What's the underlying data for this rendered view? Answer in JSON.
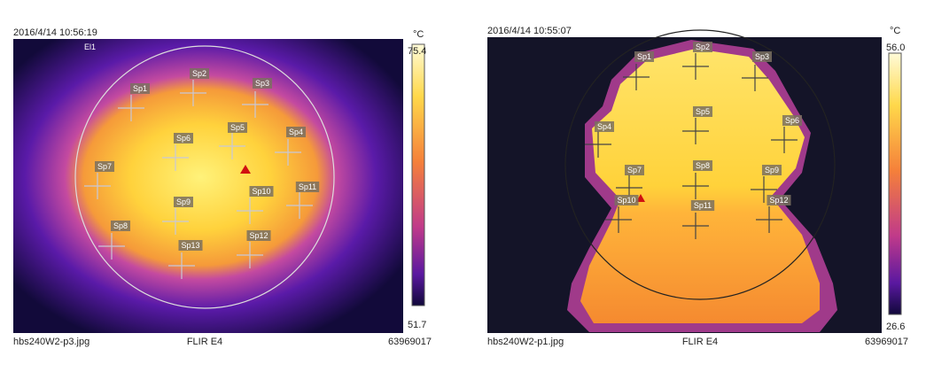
{
  "images": [
    {
      "timestamp": "2016/4/14 10:56:19",
      "box_label": "El1",
      "unit": "°C",
      "scale_max": "75.4",
      "scale_min": "51.7",
      "spots": [
        "Sp1",
        "Sp2",
        "Sp3",
        "Sp4",
        "Sp5",
        "Sp6",
        "Sp7",
        "Sp8",
        "Sp9",
        "Sp10",
        "Sp11",
        "Sp12",
        "Sp13"
      ],
      "filename": "hbs240W2-p3.jpg",
      "camera": "FLIR E4",
      "serial": "63969017"
    },
    {
      "timestamp": "2016/4/14 10:55:07",
      "unit": "°C",
      "scale_max": "56.0",
      "scale_min": "26.6",
      "spots": [
        "Sp1",
        "Sp2",
        "Sp3",
        "Sp4",
        "Sp5",
        "Sp6",
        "Sp7",
        "Sp8",
        "Sp9",
        "Sp10",
        "Sp11",
        "Sp12"
      ],
      "filename": "hbs240W2-p1.jpg",
      "camera": "FLIR E4",
      "serial": "63969017"
    }
  ]
}
